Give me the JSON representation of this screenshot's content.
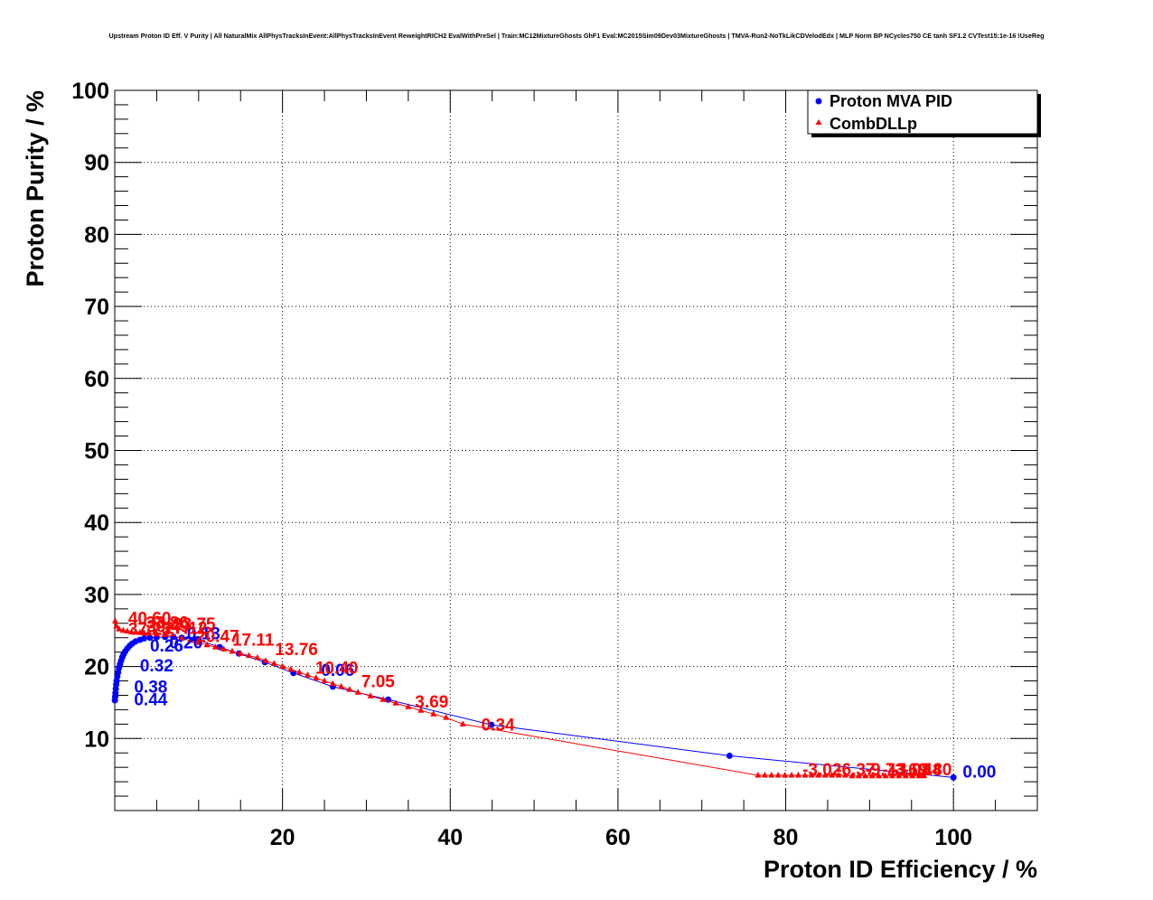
{
  "chart_data": {
    "type": "scatter",
    "title": "Upstream Proton ID Eff. V Purity | All NaturalMix AllPhysTracksInEvent:AllPhysTracksInEvent ReweightRICH2 EvalWithPreSel | Train:MC12MixtureGhosts GhF1 Eval:MC2015Sim09Dev03MixtureGhosts | TMVA-Run2-NoTkLikCDVelodEdx | MLP Norm BP NCycles750 CE tanh SF1.2 CVTest15:1e-16 !UseReg",
    "xlabel": "Proton ID Efficiency / %",
    "ylabel": "Proton Purity / %",
    "xlim": [
      0,
      110
    ],
    "ylim": [
      0,
      100
    ],
    "x_ticks": [
      20,
      40,
      60,
      80,
      100
    ],
    "y_ticks": [
      10,
      20,
      30,
      40,
      50,
      60,
      70,
      80,
      90,
      100
    ],
    "grid": true,
    "legend_position": "top-right",
    "colors": {
      "series_1": "#0000ff",
      "series_2": "#ff0000"
    },
    "series": [
      {
        "name": "Proton MVA PID",
        "marker": "circle",
        "color": "#0000ff",
        "points": [
          [
            0.02,
            15.3
          ],
          [
            0.05,
            15.8
          ],
          [
            0.08,
            16.3
          ],
          [
            0.12,
            16.9
          ],
          [
            0.17,
            17.5
          ],
          [
            0.22,
            18.0
          ],
          [
            0.3,
            18.6
          ],
          [
            0.4,
            19.2
          ],
          [
            0.5,
            19.8
          ],
          [
            0.62,
            20.3
          ],
          [
            0.75,
            20.8
          ],
          [
            0.9,
            21.3
          ],
          [
            1.05,
            21.7
          ],
          [
            1.25,
            22.1
          ],
          [
            1.5,
            22.5
          ],
          [
            1.8,
            22.9
          ],
          [
            2.1,
            23.2
          ],
          [
            2.5,
            23.5
          ],
          [
            3.0,
            23.7
          ],
          [
            3.5,
            23.9
          ],
          [
            4.2,
            24.0
          ],
          [
            5.0,
            24.05
          ],
          [
            6.0,
            24.1
          ],
          [
            7.0,
            24.1
          ],
          [
            8.0,
            24.0
          ],
          [
            9.5,
            23.8
          ],
          [
            12.5,
            22.7
          ],
          [
            14.8,
            21.8
          ],
          [
            17.9,
            20.6
          ],
          [
            21.3,
            19.1
          ],
          [
            26.0,
            17.2
          ],
          [
            32.6,
            15.4
          ],
          [
            44.9,
            11.9
          ],
          [
            73.3,
            7.6
          ],
          [
            100.0,
            4.6
          ]
        ]
      },
      {
        "name": "CombDLLp",
        "marker": "triangle",
        "color": "#ff0000",
        "points": [
          [
            0.05,
            26.3
          ],
          [
            0.2,
            25.6
          ],
          [
            0.5,
            25.2
          ],
          [
            1.0,
            25.0
          ],
          [
            1.5,
            24.9
          ],
          [
            2.0,
            24.8
          ],
          [
            2.5,
            24.75
          ],
          [
            3.0,
            24.7
          ],
          [
            3.5,
            24.65
          ],
          [
            4.0,
            24.6
          ],
          [
            5.0,
            24.5
          ],
          [
            6.0,
            24.4
          ],
          [
            7.0,
            24.2
          ],
          [
            8.0,
            23.9
          ],
          [
            9.0,
            23.6
          ],
          [
            10.0,
            23.3
          ],
          [
            11.0,
            23.0
          ],
          [
            12.0,
            22.7
          ],
          [
            13.0,
            22.4
          ],
          [
            14.0,
            22.1
          ],
          [
            15.0,
            21.8
          ],
          [
            16.0,
            21.5
          ],
          [
            17.0,
            21.2
          ],
          [
            18.0,
            20.8
          ],
          [
            19.0,
            20.4
          ],
          [
            20.0,
            20.0
          ],
          [
            21.0,
            19.6
          ],
          [
            22.0,
            19.2
          ],
          [
            23.0,
            18.8
          ],
          [
            24.0,
            18.4
          ],
          [
            25.0,
            18.0
          ],
          [
            26.0,
            17.6
          ],
          [
            27.0,
            17.2
          ],
          [
            28.0,
            16.8
          ],
          [
            29.0,
            16.4
          ],
          [
            30.5,
            15.9
          ],
          [
            32.0,
            15.4
          ],
          [
            33.5,
            14.9
          ],
          [
            35.0,
            14.4
          ],
          [
            36.5,
            13.9
          ],
          [
            38.0,
            13.4
          ],
          [
            39.5,
            12.9
          ],
          [
            41.5,
            12.0
          ],
          [
            76.7,
            4.9
          ],
          [
            77.5,
            4.9
          ],
          [
            78.3,
            4.9
          ],
          [
            79.1,
            4.9
          ],
          [
            79.9,
            4.9
          ],
          [
            80.7,
            4.9
          ],
          [
            81.5,
            4.9
          ],
          [
            82.3,
            4.9
          ],
          [
            83.1,
            4.9
          ],
          [
            83.9,
            4.9
          ],
          [
            84.7,
            4.9
          ],
          [
            85.5,
            4.9
          ],
          [
            86.3,
            4.9
          ],
          [
            87.1,
            4.9
          ],
          [
            87.9,
            4.8
          ],
          [
            88.7,
            4.8
          ],
          [
            89.5,
            4.8
          ],
          [
            90.3,
            4.8
          ],
          [
            91.1,
            4.8
          ],
          [
            91.9,
            4.8
          ],
          [
            92.7,
            4.8
          ],
          [
            93.5,
            4.8
          ],
          [
            94.3,
            4.8
          ],
          [
            95.1,
            4.8
          ],
          [
            95.9,
            4.8
          ],
          [
            96.5,
            4.8
          ]
        ]
      }
    ],
    "annotations": [
      {
        "text": "0.44",
        "x": 2.3,
        "y": 14.6,
        "color": "#0000ff"
      },
      {
        "text": "0.38",
        "x": 2.3,
        "y": 16.4,
        "color": "#0000ff"
      },
      {
        "text": "0.32",
        "x": 3.0,
        "y": 19.3,
        "color": "#0000ff"
      },
      {
        "text": "0.26",
        "x": 4.2,
        "y": 22.1,
        "color": "#0000ff"
      },
      {
        "text": "0.20",
        "x": 6.5,
        "y": 22.5,
        "color": "#0000ff"
      },
      {
        "text": "0.13",
        "x": 8.6,
        "y": 23.8,
        "color": "#0000ff"
      },
      {
        "text": "0.06",
        "x": 24.6,
        "y": 18.7,
        "color": "#0000ff"
      },
      {
        "text": "0.00",
        "x": 101.1,
        "y": 4.6,
        "color": "#0000ff"
      },
      {
        "text": "40.60",
        "x": 1.6,
        "y": 25.9,
        "color": "#ff0000"
      },
      {
        "text": "37.23",
        "x": 1.6,
        "y": 24.4,
        "color": "#ff0000"
      },
      {
        "text": "33.86",
        "x": 3.7,
        "y": 25.3,
        "color": "#ff0000"
      },
      {
        "text": "30.49",
        "x": 3.8,
        "y": 24.8,
        "color": "#ff0000"
      },
      {
        "text": "27.12",
        "x": 5.9,
        "y": 24.5,
        "color": "#ff0000"
      },
      {
        "text": "23.75",
        "x": 6.9,
        "y": 25.1,
        "color": "#ff0000"
      },
      {
        "text": "20.47",
        "x": 9.7,
        "y": 23.4,
        "color": "#ff0000"
      },
      {
        "text": "17.11",
        "x": 14.0,
        "y": 22.9,
        "color": "#ff0000"
      },
      {
        "text": "13.76",
        "x": 19.1,
        "y": 21.6,
        "color": "#ff0000"
      },
      {
        "text": "10.40",
        "x": 23.9,
        "y": 19.0,
        "color": "#ff0000"
      },
      {
        "text": "7.05",
        "x": 29.4,
        "y": 17.1,
        "color": "#ff0000"
      },
      {
        "text": "3.69",
        "x": 35.8,
        "y": 14.3,
        "color": "#ff0000"
      },
      {
        "text": "0.34",
        "x": 43.7,
        "y": 11.1,
        "color": "#ff0000"
      },
      {
        "text": "-3.02",
        "x": 82.0,
        "y": 4.9,
        "color": "#ff0000"
      },
      {
        "text": "-6.37",
        "x": 86.0,
        "y": 4.9,
        "color": "#ff0000"
      },
      {
        "text": "-9.73",
        "x": 89.5,
        "y": 4.9,
        "color": "#ff0000"
      },
      {
        "text": "-13.08",
        "x": 91.5,
        "y": 4.9,
        "color": "#ff0000"
      },
      {
        "text": "-16.44",
        "x": 92.8,
        "y": 4.9,
        "color": "#ff0000"
      },
      {
        "text": "-19.80",
        "x": 94.0,
        "y": 4.9,
        "color": "#ff0000"
      }
    ]
  }
}
